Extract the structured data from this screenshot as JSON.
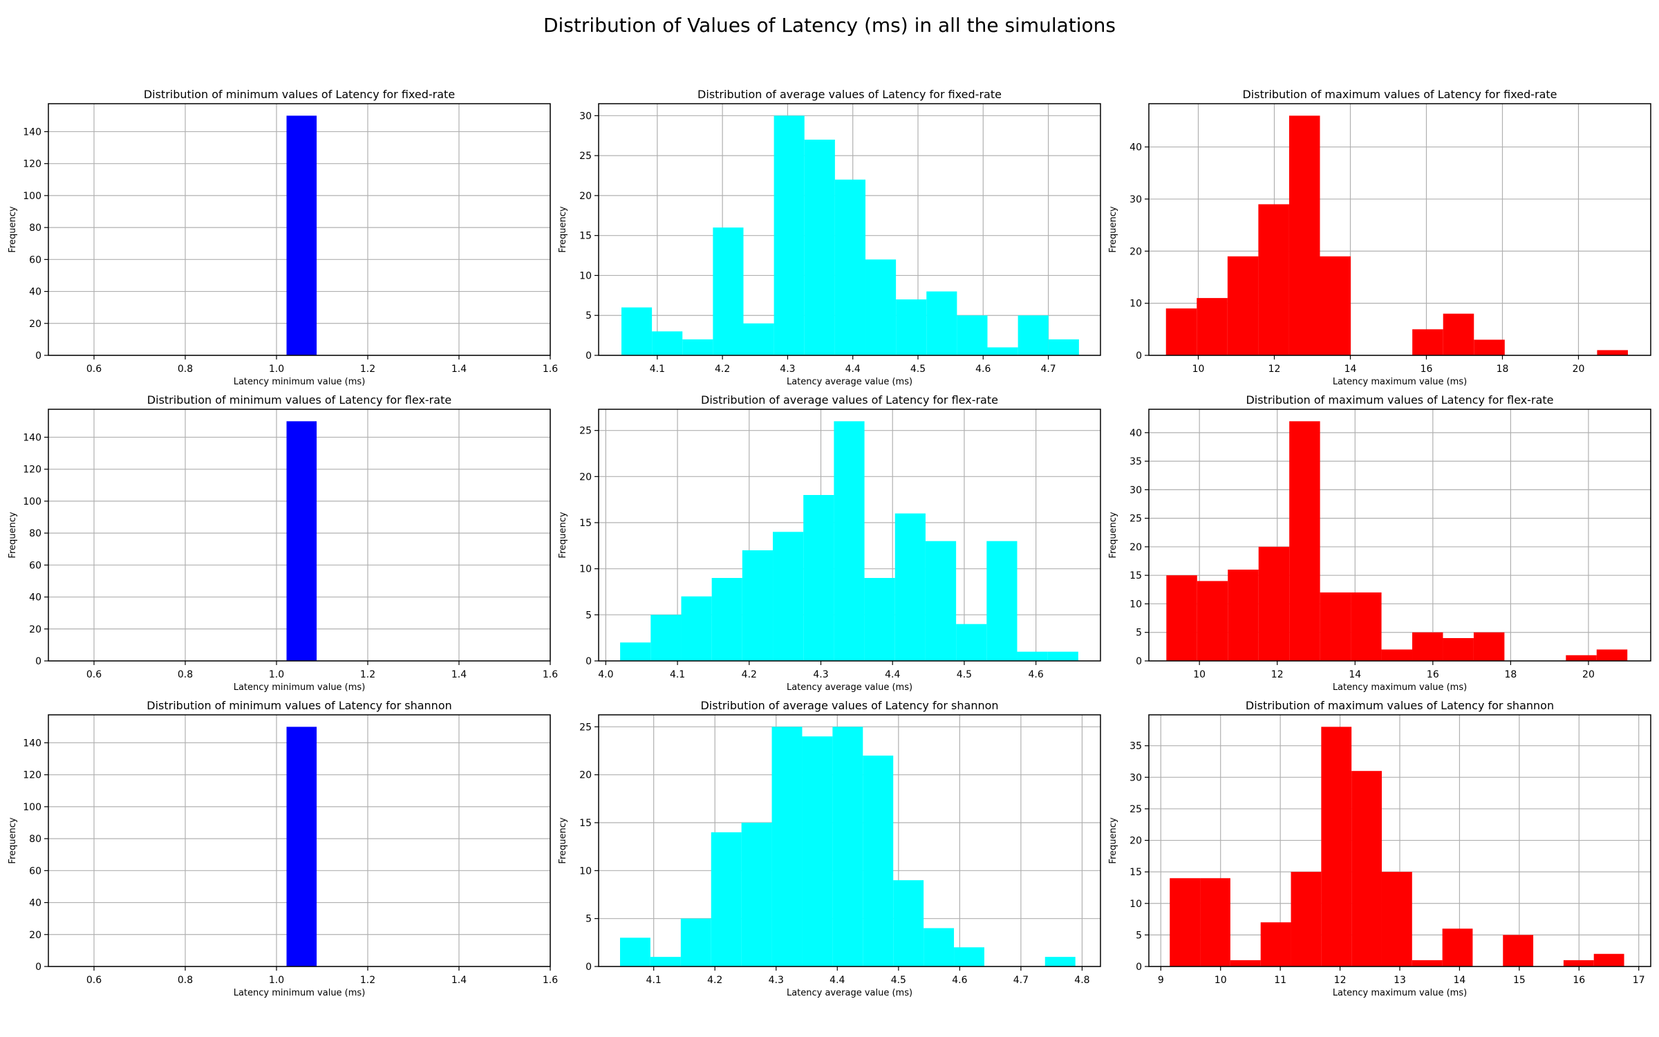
{
  "figure": {
    "suptitle": "Distribution of Values of Latency (ms) in all the simulations"
  },
  "colors": {
    "min": "#0000ff",
    "avg": "#00ffff",
    "max": "#ff0000",
    "grid": "#b0b0b0"
  },
  "chart_data": [
    {
      "type": "bar",
      "title": "Distribution of minimum values of Latency for fixed-rate",
      "xlabel": "Latency minimum value (ms)",
      "ylabel": "Frequency",
      "xlim": [
        0.5,
        1.6
      ],
      "ylim": [
        0,
        157.5
      ],
      "xticks": [
        0.6,
        0.8,
        1.0,
        1.2,
        1.4,
        1.6
      ],
      "yticks": [
        0,
        20,
        40,
        60,
        80,
        100,
        120,
        140
      ],
      "tick_decimals": 1,
      "grid": true,
      "color": "#0000ff",
      "bins": [
        [
          1.022,
          1.088,
          150
        ]
      ]
    },
    {
      "type": "bar",
      "title": "Distribution of average values of Latency for fixed-rate",
      "xlabel": "Latency average value (ms)",
      "ylabel": "Frequency",
      "xlim": [
        4.01,
        4.78
      ],
      "ylim": [
        0,
        31.5
      ],
      "xticks": [
        4.1,
        4.2,
        4.3,
        4.4,
        4.5,
        4.6,
        4.7
      ],
      "yticks": [
        0,
        5,
        10,
        15,
        20,
        25,
        30
      ],
      "tick_decimals": 1,
      "grid": true,
      "color": "#00ffff",
      "bins_start": 4.045,
      "bin_width": 0.0468,
      "values": [
        6,
        3,
        2,
        16,
        4,
        30,
        27,
        22,
        12,
        7,
        8,
        5,
        1,
        5,
        2
      ]
    },
    {
      "type": "bar",
      "title": "Distribution of maximum values of Latency  for fixed-rate",
      "xlabel": "Latency maximum value (ms)",
      "ylabel": "Frequency",
      "xlim": [
        8.7,
        21.9
      ],
      "ylim": [
        0,
        48.3
      ],
      "xticks": [
        10,
        12,
        14,
        16,
        18,
        20
      ],
      "yticks": [
        0,
        10,
        20,
        30,
        40
      ],
      "tick_decimals": 0,
      "grid": true,
      "color": "#ff0000",
      "bins_start": 9.15,
      "bin_width": 0.81,
      "values": [
        9,
        11,
        19,
        29,
        46,
        19,
        0,
        0,
        5,
        8,
        3,
        0,
        0,
        0,
        1
      ]
    },
    {
      "type": "bar",
      "title": "Distribution of minimum values of Latency for flex-rate",
      "xlabel": "Latency minimum value (ms)",
      "ylabel": "Frequency",
      "xlim": [
        0.5,
        1.6
      ],
      "ylim": [
        0,
        157.5
      ],
      "xticks": [
        0.6,
        0.8,
        1.0,
        1.2,
        1.4,
        1.6
      ],
      "yticks": [
        0,
        20,
        40,
        60,
        80,
        100,
        120,
        140
      ],
      "tick_decimals": 1,
      "grid": true,
      "color": "#0000ff",
      "bins": [
        [
          1.022,
          1.088,
          150
        ]
      ]
    },
    {
      "type": "bar",
      "title": "Distribution of average values of Latency for flex-rate",
      "xlabel": "Latency average value (ms)",
      "ylabel": "Frequency",
      "xlim": [
        3.99,
        4.69
      ],
      "ylim": [
        0,
        27.3
      ],
      "xticks": [
        4.0,
        4.1,
        4.2,
        4.3,
        4.4,
        4.5,
        4.6
      ],
      "yticks": [
        0,
        5,
        10,
        15,
        20,
        25
      ],
      "tick_decimals": 1,
      "grid": true,
      "color": "#00ffff",
      "bins_start": 4.02,
      "bin_width": 0.0426,
      "values": [
        2,
        5,
        7,
        9,
        12,
        14,
        18,
        26,
        9,
        16,
        13,
        4,
        13,
        1,
        1
      ]
    },
    {
      "type": "bar",
      "title": "Distribution of maximum values of Latency  for flex-rate",
      "xlabel": "Latency maximum value (ms)",
      "ylabel": "Frequency",
      "xlim": [
        8.7,
        21.6
      ],
      "ylim": [
        0,
        44.1
      ],
      "xticks": [
        10,
        12,
        14,
        16,
        18,
        20
      ],
      "yticks": [
        0,
        5,
        10,
        15,
        20,
        25,
        30,
        35,
        40
      ],
      "tick_decimals": 0,
      "grid": true,
      "color": "#ff0000",
      "bins_start": 9.15,
      "bin_width": 0.79,
      "values": [
        15,
        14,
        16,
        20,
        42,
        12,
        12,
        2,
        5,
        4,
        5,
        0,
        0,
        1,
        2
      ]
    },
    {
      "type": "bar",
      "title": "Distribution of minimum values of Latency for shannon",
      "xlabel": "Latency minimum value (ms)",
      "ylabel": "Frequency",
      "xlim": [
        0.5,
        1.6
      ],
      "ylim": [
        0,
        157.5
      ],
      "xticks": [
        0.6,
        0.8,
        1.0,
        1.2,
        1.4,
        1.6
      ],
      "yticks": [
        0,
        20,
        40,
        60,
        80,
        100,
        120,
        140
      ],
      "tick_decimals": 1,
      "grid": true,
      "color": "#0000ff",
      "bins": [
        [
          1.022,
          1.088,
          150
        ]
      ]
    },
    {
      "type": "bar",
      "title": "Distribution of average values of Latency for shannon",
      "xlabel": "Latency average value (ms)",
      "ylabel": "Frequency",
      "xlim": [
        4.01,
        4.83
      ],
      "ylim": [
        0,
        26.25
      ],
      "xticks": [
        4.1,
        4.2,
        4.3,
        4.4,
        4.5,
        4.6,
        4.7,
        4.8
      ],
      "yticks": [
        0,
        5,
        10,
        15,
        20,
        25
      ],
      "tick_decimals": 1,
      "grid": true,
      "color": "#00ffff",
      "bins_start": 4.045,
      "bin_width": 0.0496,
      "values": [
        3,
        1,
        5,
        14,
        15,
        25,
        24,
        25,
        22,
        9,
        4,
        2,
        0,
        0,
        1
      ]
    },
    {
      "type": "bar",
      "title": "Distribution of maximum values of Latency  for shannon",
      "xlabel": "Latency maximum value (ms)",
      "ylabel": "Frequency",
      "xlim": [
        8.8,
        17.2
      ],
      "ylim": [
        0,
        39.9
      ],
      "xticks": [
        9,
        10,
        11,
        12,
        13,
        14,
        15,
        16,
        17
      ],
      "yticks": [
        0,
        5,
        10,
        15,
        20,
        25,
        30,
        35
      ],
      "tick_decimals": 0,
      "grid": true,
      "color": "#ff0000",
      "bins_start": 9.15,
      "bin_width": 0.507,
      "values": [
        14,
        14,
        1,
        7,
        15,
        38,
        31,
        15,
        1,
        6,
        0,
        5,
        0,
        1,
        2
      ]
    }
  ]
}
